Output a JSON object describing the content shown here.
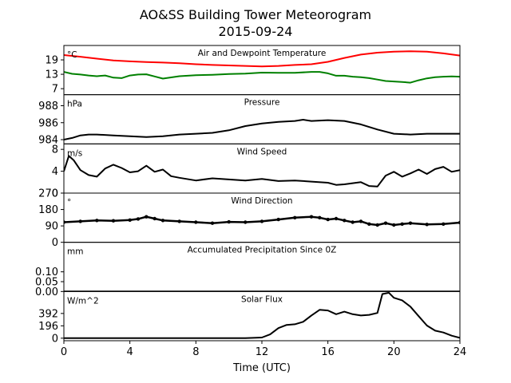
{
  "figure": {
    "title": "AO&SS Building Tower Meteorogram",
    "subtitle": "2015-09-24"
  },
  "chart_data": [
    {
      "type": "line",
      "title": "Air and Dewpoint Temperature",
      "ylabel": "°C",
      "ylim": [
        4.5,
        25
      ],
      "yticks": [
        7,
        13,
        19
      ],
      "series": [
        {
          "color": "#ff0000",
          "x": [
            0,
            1,
            2,
            3,
            4,
            5,
            6,
            7,
            8,
            9,
            10,
            11,
            12,
            13,
            14,
            15,
            16,
            17,
            18,
            19,
            20,
            21,
            22,
            23,
            24
          ],
          "y": [
            21,
            20.3,
            19.5,
            18.8,
            18.4,
            18.1,
            17.9,
            17.6,
            17.2,
            16.9,
            16.7,
            16.5,
            16.3,
            16.5,
            16.9,
            17.2,
            18.2,
            19.8,
            21.2,
            22.0,
            22.4,
            22.6,
            22.4,
            21.7,
            20.8
          ]
        },
        {
          "color": "#008000",
          "x": [
            0,
            0.5,
            1,
            1.5,
            2,
            2.5,
            3,
            3.5,
            4,
            4.5,
            5,
            5.5,
            6,
            7,
            8,
            9,
            10,
            11,
            12,
            13,
            14,
            15,
            15.5,
            16,
            16.5,
            17,
            17.5,
            18,
            18.5,
            19,
            19.5,
            20,
            20.5,
            21,
            21.5,
            22,
            22.5,
            23,
            23.5,
            24
          ],
          "y": [
            14,
            13.2,
            12.9,
            12.5,
            12.2,
            12.5,
            11.6,
            11.4,
            12.5,
            12.9,
            13.0,
            12.1,
            11.2,
            12.2,
            12.6,
            12.8,
            13.1,
            13.3,
            13.7,
            13.6,
            13.6,
            14.0,
            14.0,
            13.4,
            12.4,
            12.4,
            12.0,
            11.8,
            11.4,
            10.8,
            10.2,
            10.0,
            9.8,
            9.5,
            10.5,
            11.3,
            11.8,
            12.0,
            12.1,
            12.0
          ]
        }
      ]
    },
    {
      "type": "line",
      "title": "Pressure",
      "ylabel": "hPa",
      "ylim": [
        983.5,
        989.3
      ],
      "yticks": [
        984,
        986,
        988
      ],
      "series": [
        {
          "color": "#000000",
          "x": [
            0,
            0.5,
            1,
            1.5,
            2,
            3,
            4,
            5,
            6,
            7,
            8,
            9,
            10,
            11,
            12,
            13,
            14,
            14.5,
            15,
            16,
            17,
            18,
            19,
            20,
            21,
            22,
            23,
            24
          ],
          "y": [
            984.0,
            984.2,
            984.5,
            984.6,
            984.6,
            984.5,
            984.4,
            984.3,
            984.4,
            984.6,
            984.7,
            984.8,
            985.1,
            985.6,
            985.9,
            986.1,
            986.2,
            986.35,
            986.2,
            986.3,
            986.2,
            985.8,
            985.2,
            984.7,
            984.6,
            984.7,
            984.7,
            984.7
          ]
        }
      ]
    },
    {
      "type": "line",
      "title": "Wind Speed",
      "ylabel": "m/s",
      "ylim": [
        0,
        9
      ],
      "yticks": [
        0,
        4,
        8
      ],
      "series": [
        {
          "color": "#000000",
          "x": [
            0,
            0.3,
            0.6,
            1,
            1.5,
            2,
            2.5,
            3,
            3.5,
            4,
            4.5,
            5,
            5.5,
            6,
            6.5,
            7,
            8,
            9,
            10,
            11,
            12,
            13,
            14,
            15,
            16,
            16.5,
            17,
            18,
            18.5,
            19,
            19.5,
            20,
            20.5,
            21,
            21.5,
            22,
            22.5,
            23,
            23.5,
            24
          ],
          "y": [
            4.0,
            6.8,
            6.0,
            4.2,
            3.3,
            3.0,
            4.5,
            5.2,
            4.6,
            3.8,
            4.0,
            5.0,
            3.9,
            4.3,
            3.1,
            2.8,
            2.3,
            2.7,
            2.5,
            2.3,
            2.6,
            2.2,
            2.3,
            2.1,
            1.9,
            1.5,
            1.6,
            2.0,
            1.3,
            1.2,
            3.2,
            3.9,
            3.0,
            3.6,
            4.3,
            3.5,
            4.4,
            4.8,
            3.9,
            4.2
          ]
        }
      ]
    },
    {
      "type": "scatter",
      "title": "Wind Direction",
      "ylabel": "°",
      "ylim": [
        0,
        270
      ],
      "yticks": [
        0,
        90,
        180,
        270
      ],
      "series": [
        {
          "color": "#000000",
          "x": [
            0,
            1,
            2,
            3,
            4,
            4.5,
            5,
            5.5,
            6,
            7,
            8,
            9,
            10,
            11,
            12,
            13,
            14,
            15,
            15.5,
            16,
            16.5,
            17,
            17.5,
            18,
            18.5,
            19,
            19.5,
            20,
            20.5,
            21,
            22,
            23,
            24
          ],
          "y": [
            110,
            115,
            120,
            118,
            122,
            128,
            140,
            130,
            120,
            115,
            110,
            105,
            112,
            110,
            115,
            125,
            135,
            140,
            135,
            125,
            130,
            120,
            110,
            115,
            100,
            95,
            105,
            95,
            100,
            105,
            98,
            100,
            108
          ]
        }
      ]
    },
    {
      "type": "line",
      "title": "Accumulated Precipitation Since 0Z",
      "ylabel": "mm",
      "ylim": [
        0,
        0.25
      ],
      "yticks": [
        0.0,
        0.05,
        0.1
      ],
      "tick_labels": [
        "0.00",
        "0.05",
        "0.10"
      ],
      "series": [
        {
          "color": "#000000",
          "x": [
            0,
            24
          ],
          "y": [
            0,
            0
          ]
        }
      ]
    },
    {
      "type": "line",
      "title": "Solar Flux",
      "ylabel": "W/m^2",
      "ylim": [
        -40,
        740
      ],
      "yticks": [
        0,
        196,
        392
      ],
      "xlabel": "Time (UTC)",
      "xlim": [
        0,
        24
      ],
      "xticks": [
        0,
        4,
        8,
        12,
        16,
        20,
        24
      ],
      "series": [
        {
          "color": "#000000",
          "x": [
            0,
            11,
            12,
            12.5,
            13,
            13.5,
            14,
            14.5,
            15,
            15.5,
            16,
            16.5,
            17,
            17.5,
            18,
            18.5,
            19,
            19.3,
            19.7,
            20,
            20.5,
            21,
            21.5,
            22,
            22.5,
            23,
            23.5,
            24
          ],
          "y": [
            0,
            0,
            10,
            60,
            160,
            210,
            220,
            260,
            360,
            450,
            440,
            380,
            420,
            380,
            360,
            370,
            400,
            700,
            720,
            640,
            600,
            500,
            350,
            200,
            120,
            90,
            40,
            5
          ]
        }
      ]
    }
  ]
}
